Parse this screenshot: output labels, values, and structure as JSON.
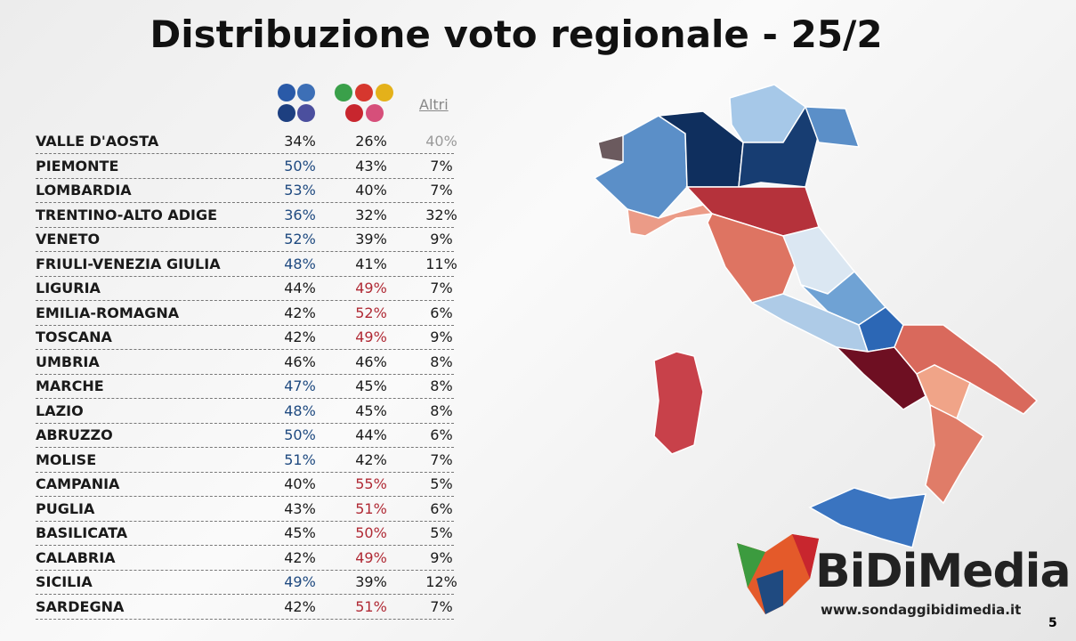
{
  "header": {
    "title": "Distribuzione voto regionale - 25/2",
    "columns": [
      "Altri"
    ]
  },
  "colors": {
    "first": "#1f4a80",
    "second": "#b02a35",
    "third": "#9a9a9a"
  },
  "table": {
    "rows": [
      [
        "VALLE D'AOSTA",
        "34%",
        "26%",
        "40%"
      ],
      [
        "PIEMONTE",
        "50%",
        "43%",
        "7%"
      ],
      [
        "LOMBARDIA",
        "53%",
        "40%",
        "7%"
      ],
      [
        "TRENTINO-ALTO ADIGE",
        "36%",
        "32%",
        "32%"
      ],
      [
        "VENETO",
        "52%",
        "39%",
        "9%"
      ],
      [
        "FRIULI-VENEZIA GIULIA",
        "48%",
        "41%",
        "11%"
      ],
      [
        "LIGURIA",
        "44%",
        "49%",
        "7%"
      ],
      [
        "EMILIA-ROMAGNA",
        "42%",
        "52%",
        "6%"
      ],
      [
        "TOSCANA",
        "42%",
        "49%",
        "9%"
      ],
      [
        "UMBRIA",
        "46%",
        "46%",
        "8%"
      ],
      [
        "MARCHE",
        "47%",
        "45%",
        "8%"
      ],
      [
        "LAZIO",
        "48%",
        "45%",
        "8%"
      ],
      [
        "ABRUZZO",
        "50%",
        "44%",
        "6%"
      ],
      [
        "MOLISE",
        "51%",
        "42%",
        "7%"
      ],
      [
        "CAMPANIA",
        "40%",
        "55%",
        "5%"
      ],
      [
        "PUGLIA",
        "43%",
        "51%",
        "6%"
      ],
      [
        "BASILICATA",
        "45%",
        "50%",
        "5%"
      ],
      [
        "CALABRIA",
        "42%",
        "49%",
        "9%"
      ],
      [
        "SICILIA",
        "49%",
        "39%",
        "12%"
      ],
      [
        "SARDEGNA",
        "42%",
        "51%",
        "7%"
      ]
    ]
  },
  "logo": {
    "name": "BiDiMedia",
    "url": "www.sondaggibidimedia.it"
  },
  "footer": {
    "page": "5"
  }
}
